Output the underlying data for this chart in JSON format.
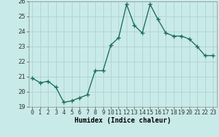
{
  "x": [
    0,
    1,
    2,
    3,
    4,
    5,
    6,
    7,
    8,
    9,
    10,
    11,
    12,
    13,
    14,
    15,
    16,
    17,
    18,
    19,
    20,
    21,
    22,
    23
  ],
  "y": [
    20.9,
    20.6,
    20.7,
    20.3,
    19.3,
    19.4,
    19.6,
    19.8,
    21.4,
    21.4,
    23.1,
    23.6,
    25.8,
    24.4,
    23.9,
    25.8,
    24.8,
    23.9,
    23.7,
    23.7,
    23.5,
    23.0,
    22.4,
    22.4
  ],
  "line_color": "#1a6b5a",
  "marker": "+",
  "marker_size": 4,
  "marker_linewidth": 1.0,
  "line_width": 1.0,
  "bg_color": "#c8eae8",
  "grid_color": "#b0d0ce",
  "xlabel": "Humidex (Indice chaleur)",
  "ylim": [
    19,
    26
  ],
  "xlim": [
    -0.5,
    23.5
  ],
  "yticks": [
    19,
    20,
    21,
    22,
    23,
    24,
    25,
    26
  ],
  "xticks": [
    0,
    1,
    2,
    3,
    4,
    5,
    6,
    7,
    8,
    9,
    10,
    11,
    12,
    13,
    14,
    15,
    16,
    17,
    18,
    19,
    20,
    21,
    22,
    23
  ],
  "xtick_labels": [
    "0",
    "1",
    "2",
    "3",
    "4",
    "5",
    "6",
    "7",
    "8",
    "9",
    "10",
    "11",
    "12",
    "13",
    "14",
    "15",
    "16",
    "17",
    "18",
    "19",
    "20",
    "21",
    "22",
    "23"
  ],
  "tick_fontsize": 6,
  "xlabel_fontsize": 7,
  "ytick_fontsize": 6.5
}
